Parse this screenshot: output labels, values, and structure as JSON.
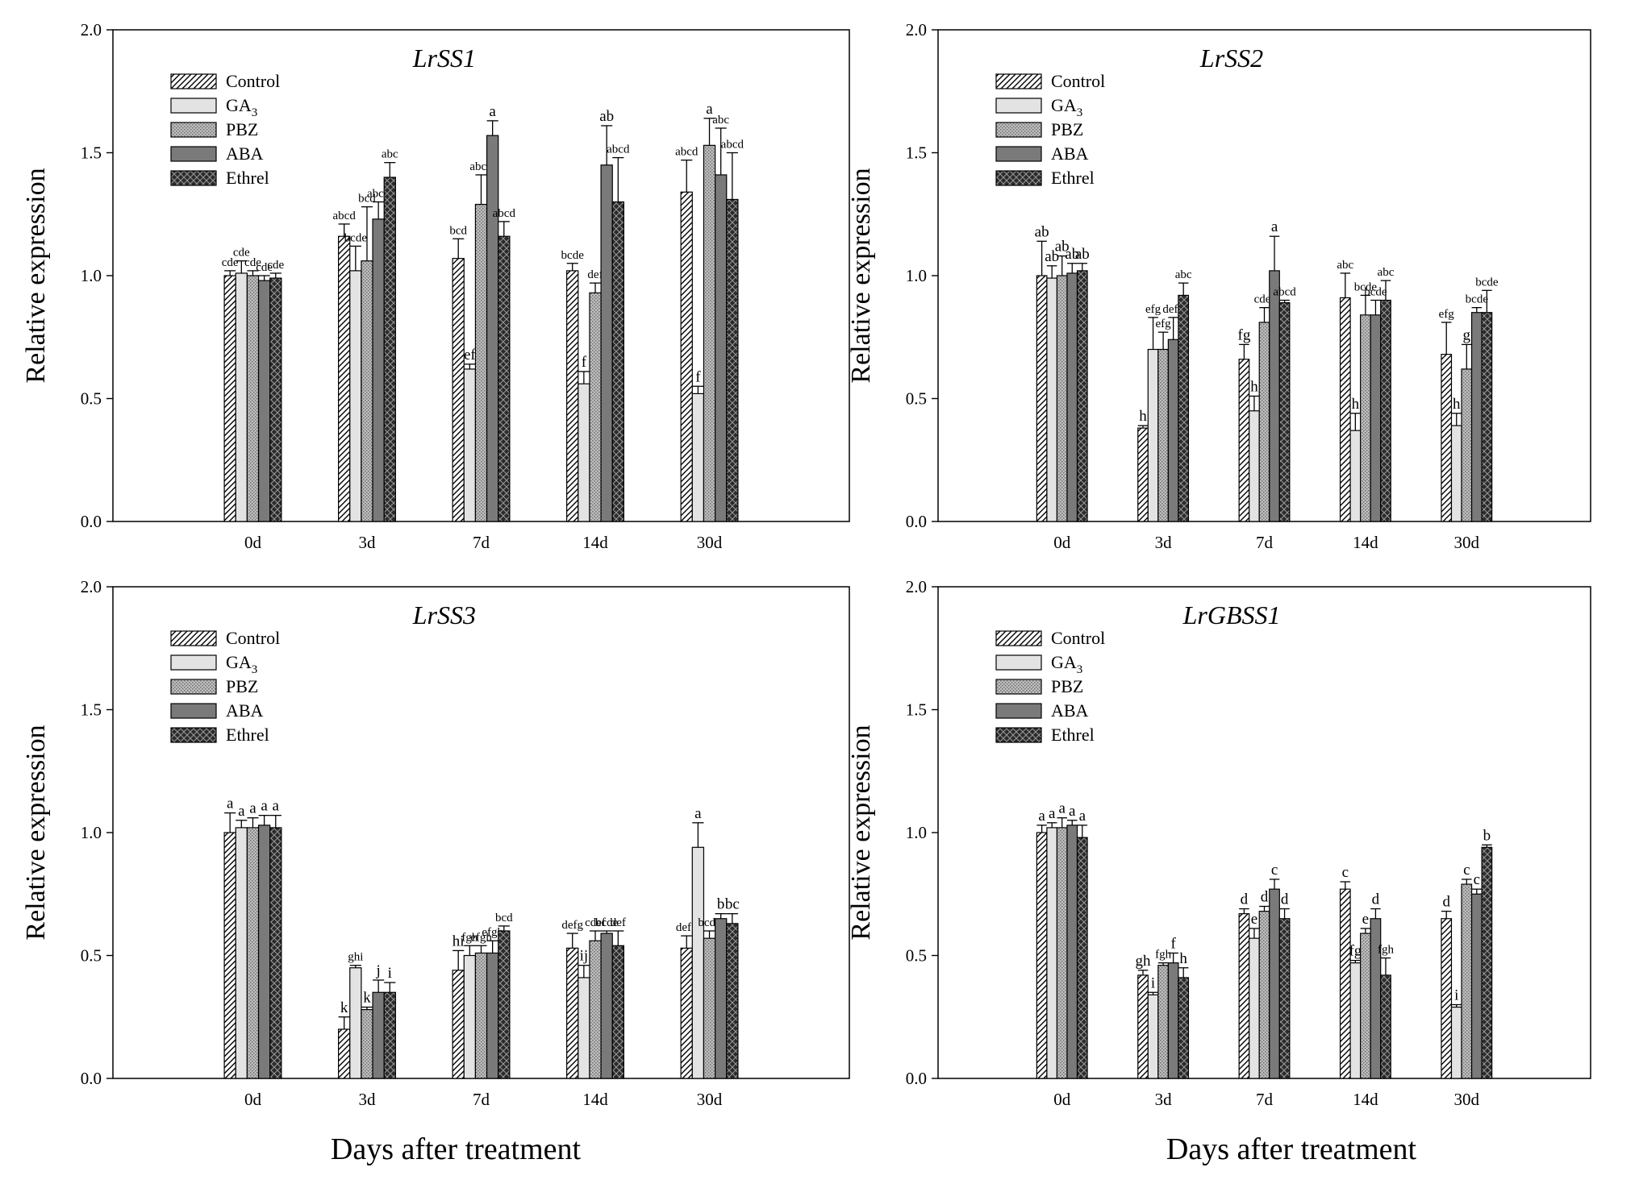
{
  "figure": {
    "ylabel": "Relative expression",
    "xlabel": "Days after treatment",
    "categories": [
      "0d",
      "3d",
      "7d",
      "14d",
      "30d"
    ],
    "legend": [
      "Control",
      "GA",
      "PBZ",
      "ABA",
      "Ethrel"
    ],
    "legend_subscript": "3",
    "yticks": [
      "0.0",
      "0.5",
      "1.0",
      "1.5",
      "2.0"
    ]
  },
  "chart_data": [
    {
      "type": "bar",
      "title": "LrSS1",
      "xlabel": "Days after treatment",
      "ylabel": "Relative expression",
      "ylim": [
        0,
        2.0
      ],
      "categories": [
        "0d",
        "3d",
        "7d",
        "14d",
        "30d"
      ],
      "series": [
        {
          "name": "Control",
          "values": [
            1.0,
            1.16,
            1.07,
            1.02,
            1.34
          ],
          "errors": [
            0.02,
            0.05,
            0.08,
            0.03,
            0.13
          ],
          "labels": [
            "cde",
            "abcd",
            "bcd",
            "bcde",
            "abcd"
          ]
        },
        {
          "name": "GA3",
          "values": [
            1.01,
            1.02,
            0.62,
            0.56,
            0.52
          ],
          "errors": [
            0.05,
            0.1,
            0.02,
            0.05,
            0.03
          ],
          "labels": [
            "cde",
            "bcde",
            "ef",
            "f",
            "f"
          ]
        },
        {
          "name": "PBZ",
          "values": [
            1.0,
            1.06,
            1.29,
            0.93,
            1.53
          ],
          "errors": [
            0.02,
            0.22,
            0.12,
            0.04,
            0.11
          ],
          "labels": [
            "cde",
            "bcd",
            "abcd",
            "def",
            "a"
          ]
        },
        {
          "name": "ABA",
          "values": [
            0.98,
            1.23,
            1.57,
            1.45,
            1.41
          ],
          "errors": [
            0.02,
            0.07,
            0.06,
            0.16,
            0.19
          ],
          "labels": [
            "cde",
            "abcd",
            "a",
            "ab",
            "abc"
          ]
        },
        {
          "name": "Ethrel",
          "values": [
            0.99,
            1.4,
            1.16,
            1.3,
            1.31
          ],
          "errors": [
            0.02,
            0.06,
            0.06,
            0.18,
            0.19
          ],
          "labels": [
            "cde",
            "abc",
            "abcd",
            "abcd",
            "abcd"
          ]
        }
      ]
    },
    {
      "type": "bar",
      "title": "LrSS2",
      "xlabel": "Days after treatment",
      "ylabel": "Relative expression",
      "ylim": [
        0,
        2.0
      ],
      "categories": [
        "0d",
        "3d",
        "7d",
        "14d",
        "30d"
      ],
      "series": [
        {
          "name": "Control",
          "values": [
            1.0,
            0.38,
            0.66,
            0.91,
            0.68
          ],
          "errors": [
            0.14,
            0.01,
            0.06,
            0.1,
            0.13
          ],
          "labels": [
            "ab",
            "h",
            "fg",
            "abc",
            "efg"
          ]
        },
        {
          "name": "GA3",
          "values": [
            0.99,
            0.7,
            0.45,
            0.37,
            0.39
          ],
          "errors": [
            0.05,
            0.13,
            0.06,
            0.07,
            0.05
          ],
          "labels": [
            "ab",
            "efg",
            "h",
            "h",
            "h"
          ]
        },
        {
          "name": "PBZ",
          "values": [
            1.0,
            0.7,
            0.81,
            0.84,
            0.62
          ],
          "errors": [
            0.08,
            0.07,
            0.06,
            0.08,
            0.1
          ],
          "labels": [
            "ab",
            "efg",
            "cdef",
            "bcde",
            "g"
          ]
        },
        {
          "name": "ABA",
          "values": [
            1.01,
            0.74,
            1.02,
            0.84,
            0.85
          ],
          "errors": [
            0.04,
            0.09,
            0.14,
            0.06,
            0.02
          ],
          "labels": [
            "ab",
            "defg",
            "a",
            "bcde",
            "bcde"
          ]
        },
        {
          "name": "Ethrel",
          "values": [
            1.02,
            0.92,
            0.89,
            0.9,
            0.85
          ],
          "errors": [
            0.03,
            0.05,
            0.01,
            0.08,
            0.09
          ],
          "labels": [
            "ab",
            "abc",
            "abcd",
            "abc",
            "bcde"
          ]
        }
      ]
    },
    {
      "type": "bar",
      "title": "LrSS3",
      "xlabel": "Days after treatment",
      "ylabel": "Relative expression",
      "ylim": [
        0,
        2.0
      ],
      "categories": [
        "0d",
        "3d",
        "7d",
        "14d",
        "30d"
      ],
      "series": [
        {
          "name": "Control",
          "values": [
            1.0,
            0.2,
            0.44,
            0.53,
            0.53
          ],
          "errors": [
            0.08,
            0.05,
            0.08,
            0.06,
            0.05
          ],
          "labels": [
            "a",
            "k",
            "hi",
            "defg",
            "defg"
          ]
        },
        {
          "name": "GA3",
          "values": [
            1.02,
            0.45,
            0.5,
            0.41,
            0.94
          ],
          "errors": [
            0.03,
            0.01,
            0.04,
            0.05,
            0.1
          ],
          "labels": [
            "a",
            "ghi",
            "fgh",
            "ij",
            "a"
          ]
        },
        {
          "name": "PBZ",
          "values": [
            1.02,
            0.28,
            0.51,
            0.56,
            0.57
          ],
          "errors": [
            0.04,
            0.01,
            0.03,
            0.04,
            0.03
          ],
          "labels": [
            "a",
            "k",
            "efgh",
            "cdef",
            "bcde"
          ]
        },
        {
          "name": "ABA",
          "values": [
            1.03,
            0.35,
            0.51,
            0.59,
            0.65
          ],
          "errors": [
            0.04,
            0.05,
            0.05,
            0.01,
            0.02
          ],
          "labels": [
            "a",
            "j",
            "efgh",
            "bcde",
            "b"
          ]
        },
        {
          "name": "Ethrel",
          "values": [
            1.02,
            0.35,
            0.6,
            0.54,
            0.63
          ],
          "errors": [
            0.05,
            0.04,
            0.02,
            0.06,
            0.04
          ],
          "labels": [
            "a",
            "i",
            "bcd",
            "def",
            "bc"
          ]
        }
      ]
    },
    {
      "type": "bar",
      "title": "LrGBSS1",
      "xlabel": "Days after treatment",
      "ylabel": "Relative expression",
      "ylim": [
        0,
        2.0
      ],
      "categories": [
        "0d",
        "3d",
        "7d",
        "14d",
        "30d"
      ],
      "series": [
        {
          "name": "Control",
          "values": [
            1.0,
            0.42,
            0.67,
            0.77,
            0.65
          ],
          "errors": [
            0.03,
            0.02,
            0.02,
            0.03,
            0.03
          ],
          "labels": [
            "a",
            "gh",
            "d",
            "c",
            "d"
          ]
        },
        {
          "name": "GA3",
          "values": [
            1.02,
            0.34,
            0.57,
            0.47,
            0.29
          ],
          "errors": [
            0.02,
            0.01,
            0.04,
            0.01,
            0.01
          ],
          "labels": [
            "a",
            "i",
            "e",
            "fg",
            "i"
          ]
        },
        {
          "name": "PBZ",
          "values": [
            1.02,
            0.46,
            0.68,
            0.59,
            0.79
          ],
          "errors": [
            0.04,
            0.01,
            0.02,
            0.02,
            0.02
          ],
          "labels": [
            "a",
            "fgh",
            "d",
            "e",
            "c"
          ]
        },
        {
          "name": "ABA",
          "values": [
            1.03,
            0.47,
            0.77,
            0.65,
            0.75
          ],
          "errors": [
            0.02,
            0.04,
            0.04,
            0.04,
            0.02
          ],
          "labels": [
            "a",
            "f",
            "c",
            "d",
            "c"
          ]
        },
        {
          "name": "Ethrel",
          "values": [
            0.98,
            0.41,
            0.65,
            0.42,
            0.94
          ],
          "errors": [
            0.05,
            0.04,
            0.04,
            0.07,
            0.01
          ],
          "labels": [
            "a",
            "h",
            "d",
            "fgh",
            "b"
          ]
        }
      ]
    }
  ]
}
